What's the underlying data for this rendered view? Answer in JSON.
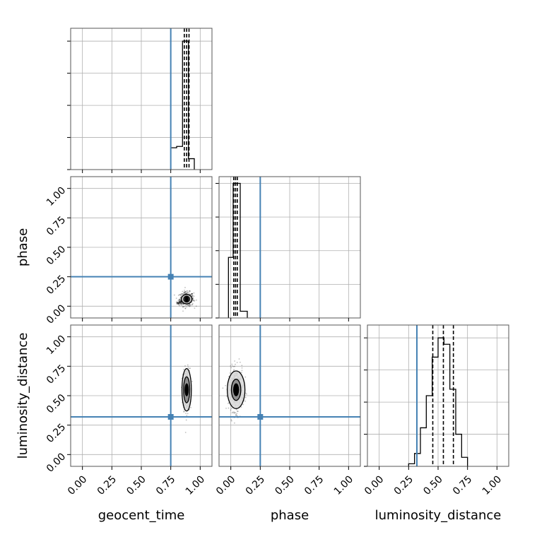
{
  "colors": {
    "truth": "#4682b4",
    "hist": "#000000",
    "grid": "#b0b0b0",
    "frame": "#555555",
    "density": "#000000",
    "contour_fill": "#808080"
  },
  "chart_data": {
    "type": "corner",
    "parameters": [
      "geocent_time",
      "phase",
      "luminosity_distance"
    ],
    "axis_labels": {
      "geocent_time": "geocent_time",
      "phase": "phase",
      "luminosity_distance": "luminosity_distance"
    },
    "range": [
      -0.1,
      1.1
    ],
    "ticks": [
      0.0,
      0.25,
      0.5,
      0.75,
      1.0
    ],
    "tick_labels": [
      "0.00",
      "0.25",
      "0.50",
      "0.75",
      "1.00"
    ],
    "grid": true,
    "truths": {
      "geocent_time": 0.75,
      "phase": 0.25,
      "luminosity_distance": 0.32
    },
    "histograms": [
      {
        "parameter": "geocent_time",
        "bins": [
          {
            "x0": 0.75,
            "x1": 0.8,
            "h": 0.17
          },
          {
            "x0": 0.8,
            "x1": 0.85,
            "h": 0.18
          },
          {
            "x0": 0.85,
            "x1": 0.9,
            "h": 1.0
          },
          {
            "x0": 0.9,
            "x1": 0.95,
            "h": 0.085
          }
        ],
        "quantiles": [
          0.865,
          0.885,
          0.905
        ],
        "ymax": 1.1,
        "yticks": [
          0.0,
          0.25,
          0.5,
          0.75,
          1.0
        ]
      },
      {
        "parameter": "phase",
        "bins": [
          {
            "x0": -0.02,
            "x1": 0.02,
            "h": 0.45
          },
          {
            "x0": 0.02,
            "x1": 0.08,
            "h": 1.0
          },
          {
            "x0": 0.08,
            "x1": 0.14,
            "h": 0.05
          }
        ],
        "quantiles": [
          0.025,
          0.04,
          0.055
        ],
        "ymax": 1.05,
        "yticks": [
          0.0,
          0.25,
          0.5,
          0.75,
          1.0
        ]
      },
      {
        "parameter": "luminosity_distance",
        "bins": [
          {
            "x0": 0.25,
            "x1": 0.3,
            "h": 0.02
          },
          {
            "x0": 0.3,
            "x1": 0.35,
            "h": 0.1
          },
          {
            "x0": 0.35,
            "x1": 0.4,
            "h": 0.3
          },
          {
            "x0": 0.4,
            "x1": 0.45,
            "h": 0.55
          },
          {
            "x0": 0.45,
            "x1": 0.5,
            "h": 0.85
          },
          {
            "x0": 0.5,
            "x1": 0.55,
            "h": 1.0
          },
          {
            "x0": 0.55,
            "x1": 0.6,
            "h": 0.95
          },
          {
            "x0": 0.6,
            "x1": 0.65,
            "h": 0.6
          },
          {
            "x0": 0.65,
            "x1": 0.7,
            "h": 0.25
          },
          {
            "x0": 0.7,
            "x1": 0.75,
            "h": 0.07
          }
        ],
        "quantiles": [
          0.455,
          0.545,
          0.63
        ],
        "ymax": 1.1,
        "yticks": [
          0.0,
          0.25,
          0.5,
          0.75,
          1.0
        ]
      }
    ],
    "scatter_panels": [
      {
        "x": "geocent_time",
        "y": "phase",
        "center": [
          0.885,
          0.06
        ],
        "spread": [
          0.03,
          0.03
        ],
        "tail_to": [
          0.8,
          0.02
        ],
        "contours": [
          {
            "rx": 0.045,
            "ry": 0.04
          },
          {
            "rx": 0.025,
            "ry": 0.025
          }
        ],
        "core": {
          "rx": 0.018,
          "ry": 0.022
        }
      },
      {
        "x": "geocent_time",
        "y": "luminosity_distance",
        "center": [
          0.885,
          0.55
        ],
        "spread": [
          0.015,
          0.09
        ],
        "contours": [
          {
            "rx": 0.04,
            "ry": 0.18
          },
          {
            "rx": 0.026,
            "ry": 0.11
          }
        ],
        "core": {
          "rx": 0.018,
          "ry": 0.055
        }
      },
      {
        "x": "phase",
        "y": "luminosity_distance",
        "center": [
          0.045,
          0.55
        ],
        "spread": [
          0.03,
          0.09
        ],
        "contours": [
          {
            "rx": 0.075,
            "ry": 0.16
          },
          {
            "rx": 0.04,
            "ry": 0.09
          }
        ],
        "core": {
          "rx": 0.025,
          "ry": 0.055
        }
      }
    ]
  }
}
